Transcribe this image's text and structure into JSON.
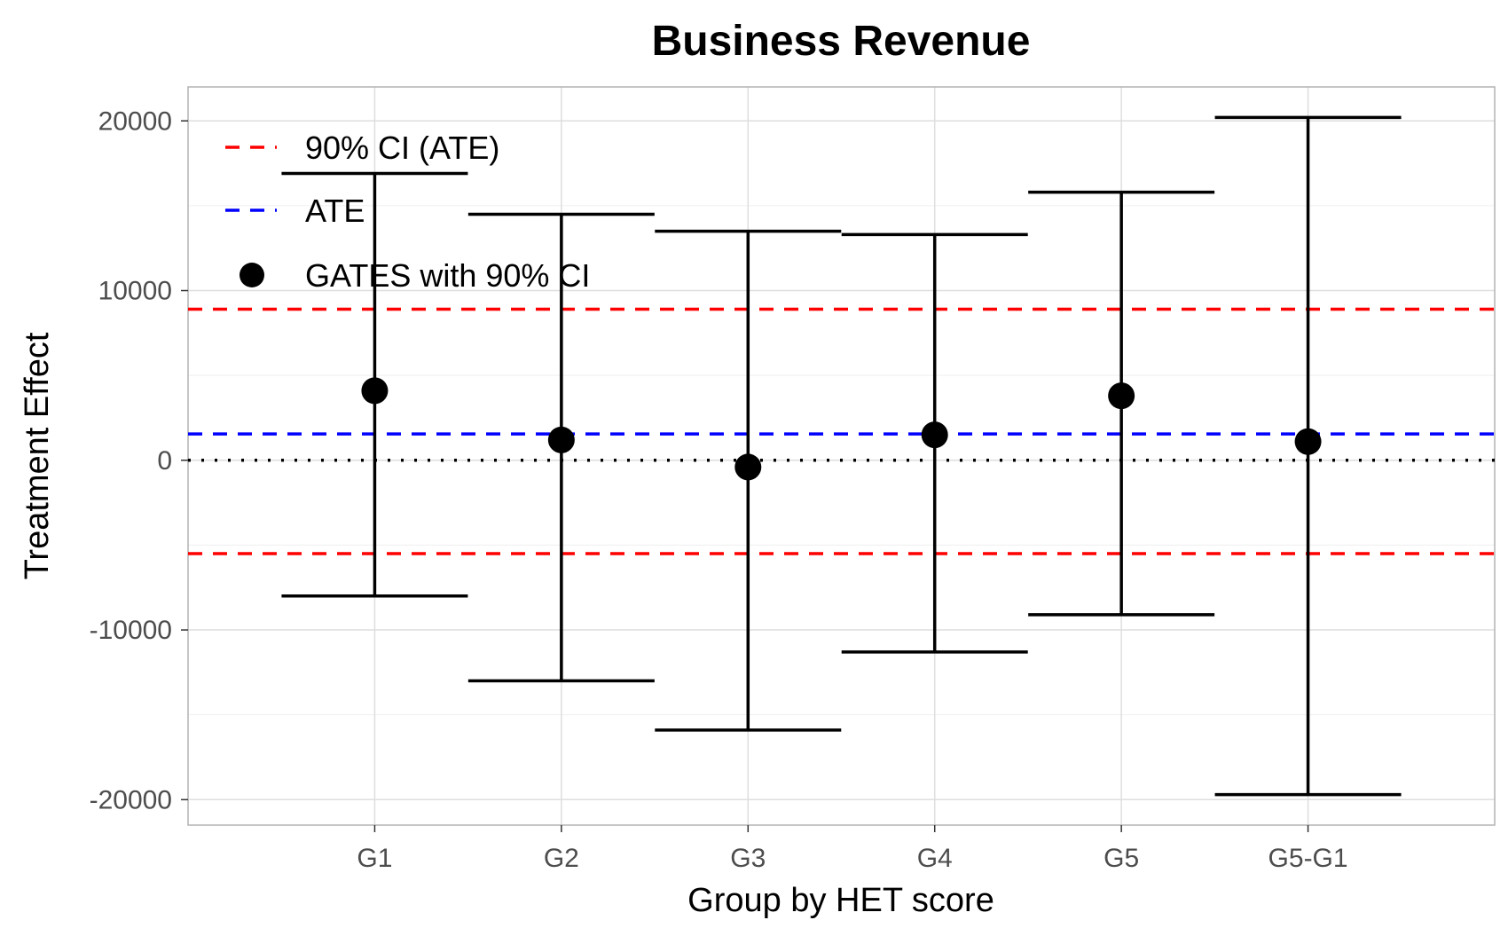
{
  "chart_data": {
    "type": "scatter",
    "title": "Business Revenue",
    "xlabel": "Group by HET score",
    "ylabel": "Treatment Effect",
    "categories": [
      "G1",
      "G2",
      "G3",
      "G4",
      "G5",
      "G5-G1"
    ],
    "series": [
      {
        "name": "GATES with 90% CI",
        "values": [
          4100,
          1200,
          -400,
          1500,
          3800,
          1100
        ],
        "ci_low": [
          -8000,
          -13000,
          -15900,
          -11300,
          -9100,
          -19700
        ],
        "ci_high": [
          16900,
          14500,
          13500,
          13300,
          15800,
          20200
        ],
        "color": "#000000"
      }
    ],
    "reference_lines": [
      {
        "name": "90% CI (ATE)",
        "values": [
          8900,
          -5500
        ],
        "color": "#ff0000",
        "style": "dashed"
      },
      {
        "name": "ATE",
        "values": [
          1550
        ],
        "color": "#0000ff",
        "style": "dashed"
      },
      {
        "values": [
          0
        ],
        "color": "#000000",
        "style": "dotted"
      }
    ],
    "yticks": [
      20000,
      10000,
      0,
      -10000,
      -20000
    ],
    "ytick_labels": [
      "20000",
      "10000",
      "0",
      "-10000",
      "-20000"
    ],
    "ylim": [
      -21500,
      22000
    ],
    "grid": true,
    "legend": {
      "position": "top-left",
      "items": [
        "90% CI (ATE)",
        "ATE",
        "GATES with 90% CI"
      ]
    }
  }
}
